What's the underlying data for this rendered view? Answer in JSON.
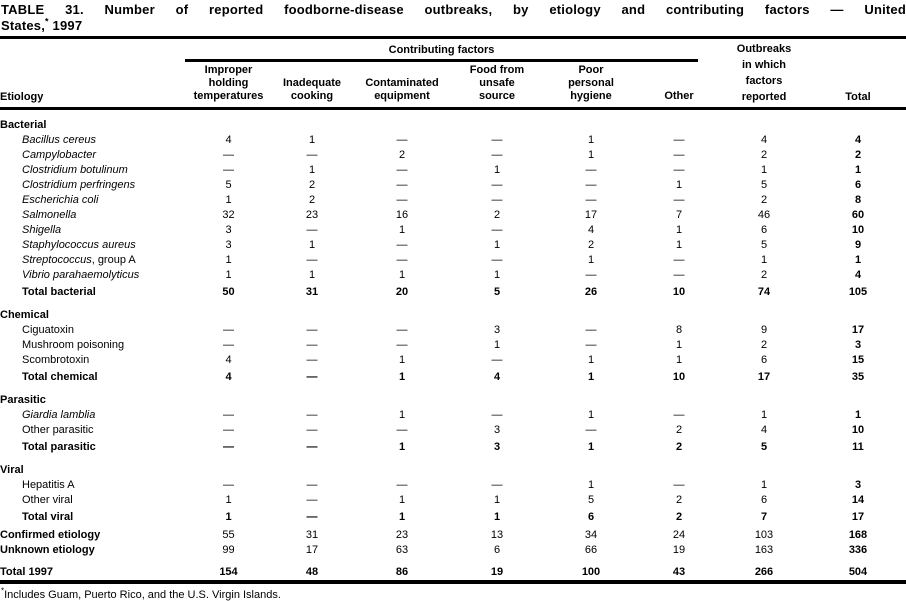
{
  "title": {
    "line1": "TABLE 31. Number of reported foodborne-disease outbreaks, by etiology and contributing factors — United",
    "line2_main": "States,",
    "line2_note": "*",
    "line2_year": "1997"
  },
  "table": {
    "etiology_header": "Etiology",
    "spanner": "Contributing factors",
    "factor_columns": [
      {
        "key": "improper_holding_temperatures",
        "label": "Improper\nholding\ntemperatures"
      },
      {
        "key": "inadequate_cooking",
        "label": "Inadequate\ncooking"
      },
      {
        "key": "contaminated_equipment",
        "label": "Contaminated\nequipment"
      },
      {
        "key": "food_from_unsafe_source",
        "label": "Food from\nunsafe\nsource"
      },
      {
        "key": "poor_personal_hygiene",
        "label": "Poor\npersonal\nhygiene"
      },
      {
        "key": "other",
        "label": "Other"
      }
    ],
    "outbreaks_column": {
      "key": "outbreaks_factors_reported",
      "label": "Outbreaks\nin which\nfactors\nreported"
    },
    "total_column": {
      "key": "total",
      "label": "Total"
    },
    "sections": [
      {
        "name": "Bacterial",
        "rows": [
          {
            "label": "Bacillus cereus",
            "italic": true,
            "values": [
              "4",
              "1",
              "—",
              "—",
              "1",
              "—",
              "4",
              "4"
            ]
          },
          {
            "label": "Campylobacter",
            "italic": true,
            "values": [
              "—",
              "—",
              "2",
              "—",
              "1",
              "—",
              "2",
              "2"
            ]
          },
          {
            "label": "Clostridium botulinum",
            "italic": true,
            "values": [
              "—",
              "1",
              "—",
              "1",
              "—",
              "—",
              "1",
              "1"
            ]
          },
          {
            "label": "Clostridium perfringens",
            "italic": true,
            "values": [
              "5",
              "2",
              "—",
              "—",
              "—",
              "1",
              "5",
              "6"
            ]
          },
          {
            "label": "Escherichia coli",
            "italic": true,
            "values": [
              "1",
              "2",
              "—",
              "—",
              "—",
              "—",
              "2",
              "8"
            ]
          },
          {
            "label": "Salmonella",
            "italic": true,
            "values": [
              "32",
              "23",
              "16",
              "2",
              "17",
              "7",
              "46",
              "60"
            ]
          },
          {
            "label": "Shigella",
            "italic": true,
            "values": [
              "3",
              "—",
              "1",
              "—",
              "4",
              "1",
              "6",
              "10"
            ]
          },
          {
            "label": "Staphylococcus aureus",
            "italic": true,
            "values": [
              "3",
              "1",
              "—",
              "1",
              "2",
              "1",
              "5",
              "9"
            ]
          },
          {
            "label": "Streptococcus",
            "suffix": ", group A",
            "italic": true,
            "values": [
              "1",
              "—",
              "—",
              "—",
              "1",
              "—",
              "1",
              "1"
            ]
          },
          {
            "label": "Vibrio parahaemolyticus",
            "italic": true,
            "values": [
              "1",
              "1",
              "1",
              "1",
              "—",
              "—",
              "2",
              "4"
            ]
          }
        ],
        "total_row": {
          "label": "Total bacterial",
          "values": [
            "50",
            "31",
            "20",
            "5",
            "26",
            "10",
            "74",
            "105"
          ]
        }
      },
      {
        "name": "Chemical",
        "rows": [
          {
            "label": "Ciguatoxin",
            "italic": false,
            "values": [
              "—",
              "—",
              "—",
              "3",
              "—",
              "8",
              "9",
              "17"
            ]
          },
          {
            "label": "Mushroom poisoning",
            "italic": false,
            "values": [
              "—",
              "—",
              "—",
              "1",
              "—",
              "1",
              "2",
              "3"
            ]
          },
          {
            "label": "Scombrotoxin",
            "italic": false,
            "values": [
              "4",
              "—",
              "1",
              "—",
              "1",
              "1",
              "6",
              "15"
            ]
          }
        ],
        "total_row": {
          "label": "Total chemical",
          "values": [
            "4",
            "—",
            "1",
            "4",
            "1",
            "10",
            "17",
            "35"
          ]
        }
      },
      {
        "name": "Parasitic",
        "rows": [
          {
            "label": "Giardia lamblia",
            "italic": true,
            "values": [
              "—",
              "—",
              "1",
              "—",
              "1",
              "—",
              "1",
              "1"
            ]
          },
          {
            "label": "Other parasitic",
            "italic": false,
            "values": [
              "—",
              "—",
              "—",
              "3",
              "—",
              "2",
              "4",
              "10"
            ]
          }
        ],
        "total_row": {
          "label": "Total parasitic",
          "values": [
            "—",
            "—",
            "1",
            "3",
            "1",
            "2",
            "5",
            "11"
          ]
        }
      },
      {
        "name": "Viral",
        "rows": [
          {
            "label": "Hepatitis A",
            "italic": false,
            "values": [
              "—",
              "—",
              "—",
              "—",
              "1",
              "—",
              "1",
              "3"
            ]
          },
          {
            "label": "Other viral",
            "italic": false,
            "values": [
              "1",
              "—",
              "1",
              "1",
              "5",
              "2",
              "6",
              "14"
            ]
          }
        ],
        "total_row": {
          "label": "Total viral",
          "values": [
            "1",
            "—",
            "1",
            "1",
            "6",
            "2",
            "7",
            "17"
          ]
        }
      }
    ],
    "summary_rows": [
      {
        "label": "Confirmed etiology",
        "values": [
          "55",
          "31",
          "23",
          "13",
          "34",
          "24",
          "103",
          "168"
        ]
      },
      {
        "label": "Unknown etiology",
        "values": [
          "99",
          "17",
          "63",
          "6",
          "66",
          "19",
          "163",
          "336"
        ]
      }
    ],
    "grand_total_row": {
      "label": "Total 1997",
      "values": [
        "154",
        "48",
        "86",
        "19",
        "100",
        "43",
        "266",
        "504"
      ]
    }
  },
  "footnote": {
    "marker": "*",
    "text": "Includes Guam, Puerto Rico, and the U.S. Virgin Islands."
  }
}
